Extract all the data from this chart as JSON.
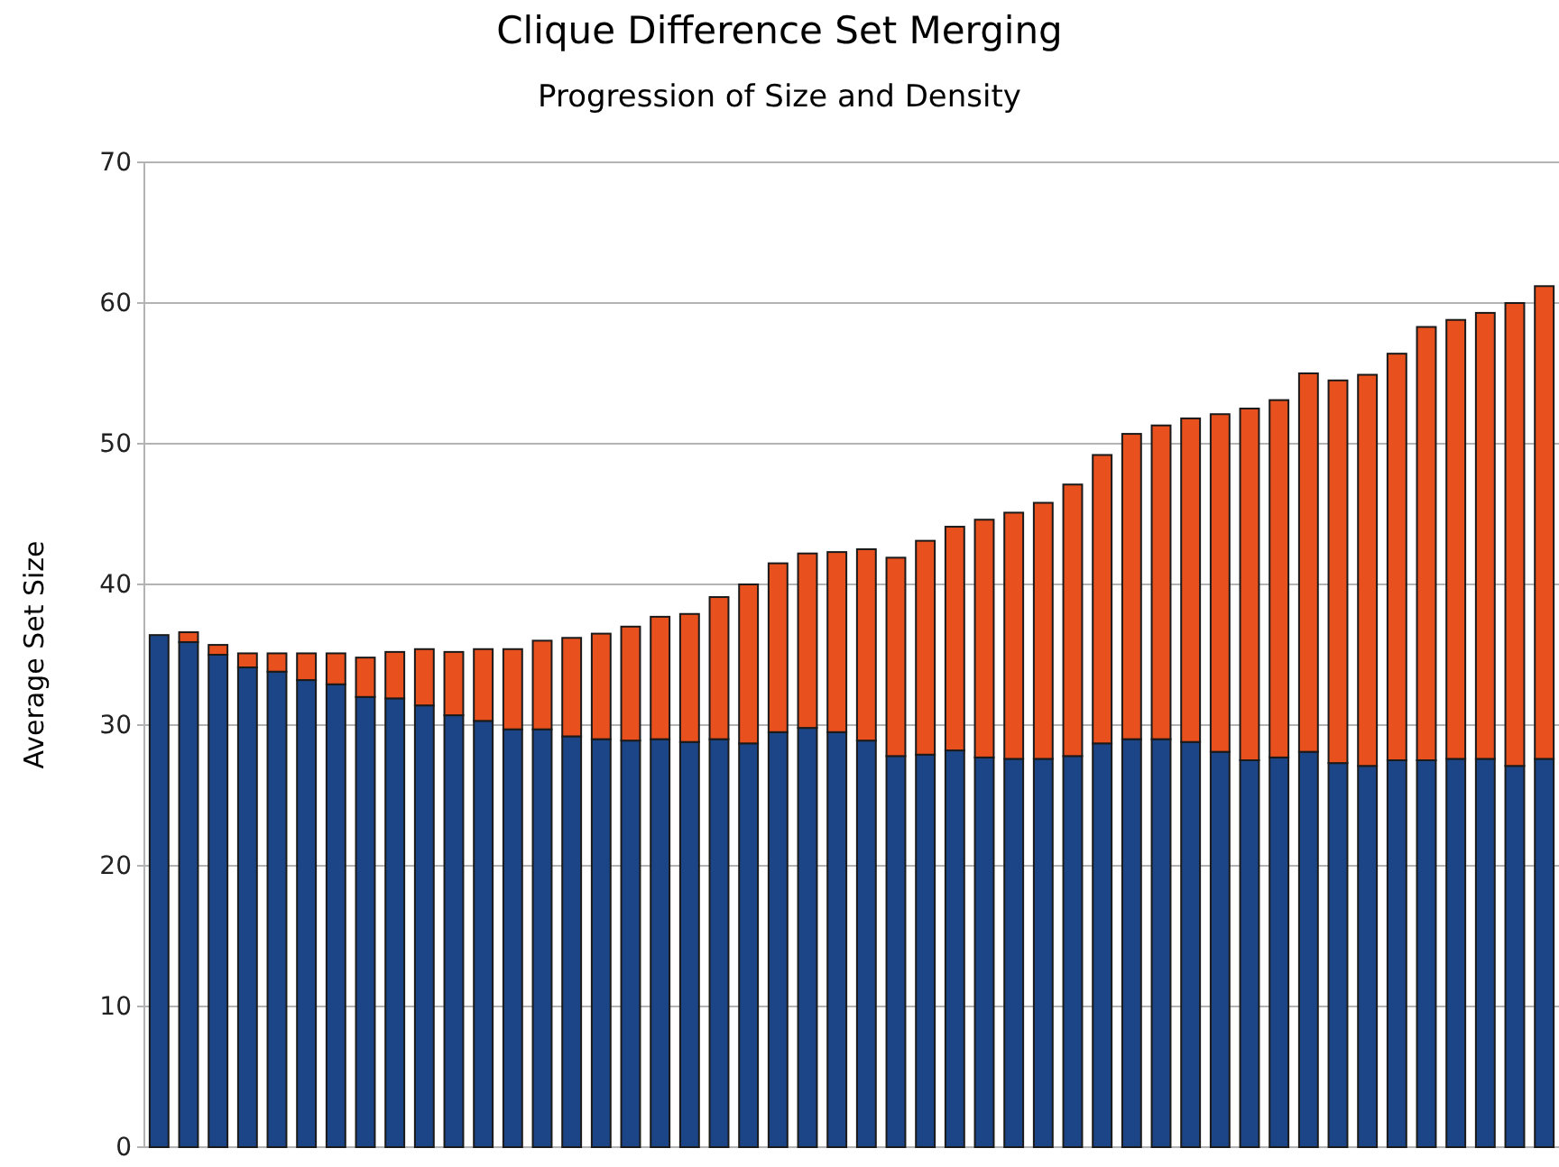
{
  "chart_data": {
    "type": "bar",
    "title": "Clique Difference Set Merging",
    "subtitle": "Progression of Size and Density",
    "ylabel": "Average Set Size",
    "categories": [
      null,
      null,
      null,
      null,
      null,
      null,
      null,
      null,
      null,
      null,
      null,
      null,
      null,
      null,
      null,
      null,
      null,
      null,
      null,
      null,
      null,
      null,
      null,
      null,
      null,
      null,
      null,
      null,
      null,
      null,
      null,
      null,
      null,
      null,
      null,
      null,
      null,
      null,
      null,
      null,
      null,
      null,
      null,
      null,
      null,
      null,
      null,
      null
    ],
    "stacked": true,
    "series": [
      {
        "color": "#1c4587",
        "values": [
          36.4,
          35.9,
          35.0,
          34.1,
          33.8,
          33.2,
          32.9,
          32.0,
          31.9,
          31.4,
          30.7,
          30.3,
          29.7,
          29.7,
          29.2,
          29.0,
          28.9,
          29.0,
          28.8,
          29.0,
          28.7,
          29.5,
          29.8,
          29.5,
          28.9,
          27.8,
          27.9,
          28.2,
          27.7,
          27.6,
          27.6,
          27.8,
          28.7,
          29.0,
          29.0,
          28.8,
          28.1,
          27.5,
          27.7,
          28.1,
          27.3,
          27.1,
          27.5,
          27.5,
          27.6,
          27.6,
          27.1,
          27.6
        ]
      },
      {
        "color": "#e8501e",
        "values": [
          0,
          0.7,
          0.7,
          1.0,
          1.3,
          1.9,
          2.2,
          2.8,
          3.3,
          4.0,
          4.5,
          5.1,
          5.7,
          6.3,
          7.0,
          7.5,
          8.1,
          8.7,
          9.1,
          10.1,
          11.3,
          12.0,
          12.4,
          12.8,
          13.6,
          14.1,
          15.2,
          15.9,
          16.9,
          17.5,
          18.2,
          19.3,
          20.5,
          21.7,
          22.3,
          23.0,
          24.0,
          25.0,
          25.4,
          26.9,
          27.2,
          27.8,
          28.9,
          30.8,
          31.2,
          31.7,
          32.9,
          33.6
        ]
      }
    ],
    "ylim": [
      0,
      70
    ],
    "yticks": [
      0,
      10,
      20,
      30,
      40,
      50,
      60,
      70
    ],
    "grid": "y"
  }
}
